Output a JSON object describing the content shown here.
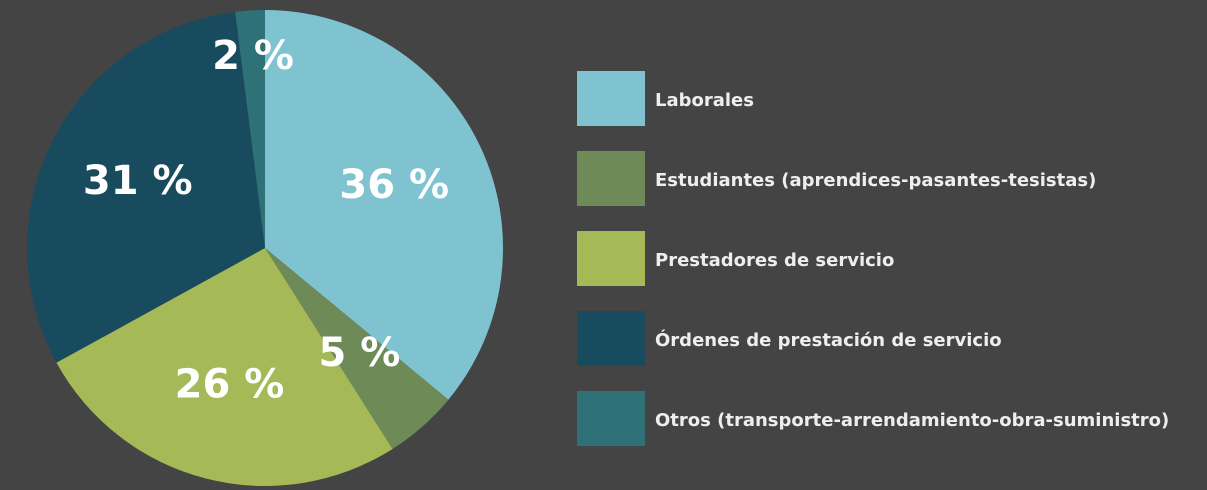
{
  "chart_data": {
    "type": "pie",
    "categories": [
      "Laborales",
      "Estudiantes (aprendices-pasantes-tesistas)",
      "Prestadores de servicio",
      "Órdenes de prestación de servicio",
      "Otros (transporte-arrendamiento-obra-suministro)"
    ],
    "values": [
      36,
      5,
      26,
      31,
      2
    ],
    "value_labels": [
      "36 %",
      "5 %",
      "26 %",
      "31 %",
      "2 %"
    ],
    "colors": [
      "#7fc3d0",
      "#6e8a56",
      "#a6b957",
      "#184b5e",
      "#2e7177"
    ],
    "legend": "right"
  }
}
